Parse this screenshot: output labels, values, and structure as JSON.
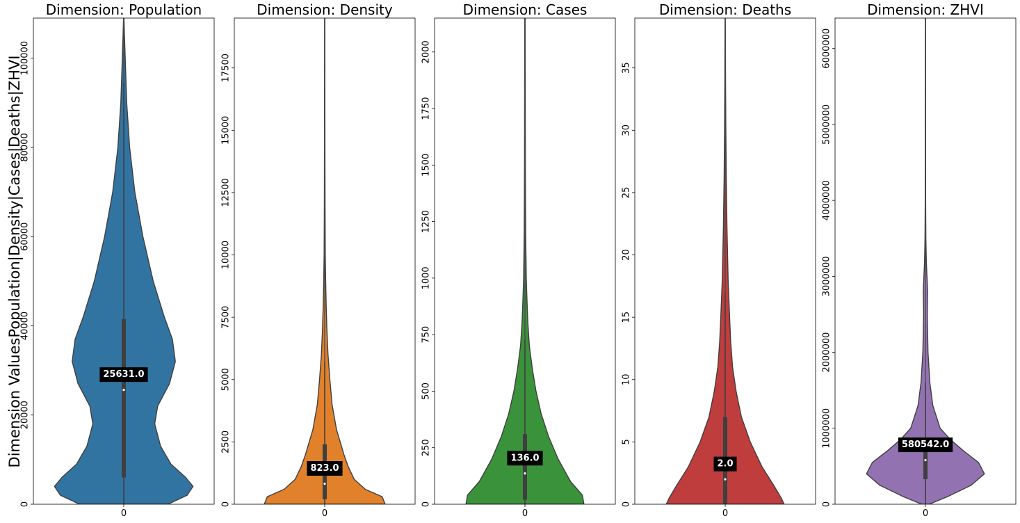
{
  "ylabel": "Dimension ValuesPopulation|Density|Cases|Deaths|ZHVI",
  "chart_data": [
    {
      "type": "violin",
      "title": "Dimension: Population",
      "color": "#3274a1",
      "ylim": [
        0,
        109000
      ],
      "yticks": [
        0,
        20000,
        40000,
        60000,
        80000,
        100000
      ],
      "ytick_labels": [
        "0",
        "20000",
        "40000",
        "60000",
        "80000",
        "100000"
      ],
      "xtick_label": "0",
      "median": 25631.0,
      "median_label": "25631.0",
      "q1": 6000,
      "q3": 41500,
      "whisker_low": 0,
      "whisker_high": 94500,
      "max": 109000,
      "profile": [
        [
          0,
          0.6
        ],
        [
          2000,
          0.86
        ],
        [
          4000,
          0.94
        ],
        [
          6000,
          0.84
        ],
        [
          9000,
          0.64
        ],
        [
          13000,
          0.5
        ],
        [
          18000,
          0.42
        ],
        [
          22000,
          0.46
        ],
        [
          27000,
          0.62
        ],
        [
          32000,
          0.7
        ],
        [
          37000,
          0.66
        ],
        [
          42000,
          0.55
        ],
        [
          50000,
          0.4
        ],
        [
          60000,
          0.26
        ],
        [
          70000,
          0.15
        ],
        [
          80000,
          0.08
        ],
        [
          90000,
          0.04
        ],
        [
          100000,
          0.02
        ],
        [
          105000,
          0.01
        ],
        [
          109000,
          0.003
        ]
      ]
    },
    {
      "type": "violin",
      "title": "Dimension: Density",
      "color": "#e1812c",
      "ylim": [
        0,
        19500
      ],
      "yticks": [
        0,
        2500,
        5000,
        7500,
        10000,
        12500,
        15000,
        17500
      ],
      "ytick_labels": [
        "0",
        "2500",
        "5000",
        "7500",
        "10000",
        "12500",
        "15000",
        "17500"
      ],
      "xtick_label": "0",
      "median": 823.0,
      "median_label": "823.0",
      "q1": 200,
      "q3": 2400,
      "whisker_low": 0,
      "whisker_high": 5700,
      "max": 19500,
      "profile": [
        [
          0,
          0.82
        ],
        [
          300,
          0.78
        ],
        [
          600,
          0.55
        ],
        [
          1000,
          0.4
        ],
        [
          1500,
          0.32
        ],
        [
          2000,
          0.26
        ],
        [
          2500,
          0.21
        ],
        [
          3000,
          0.16
        ],
        [
          4000,
          0.1
        ],
        [
          5000,
          0.07
        ],
        [
          6000,
          0.045
        ],
        [
          7000,
          0.03
        ],
        [
          8000,
          0.02
        ],
        [
          9000,
          0.013
        ],
        [
          10000,
          0.008
        ],
        [
          12000,
          0.005
        ],
        [
          15000,
          0.003
        ],
        [
          19500,
          0.002
        ]
      ]
    },
    {
      "type": "violin",
      "title": "Dimension: Cases",
      "color": "#3a923a",
      "ylim": [
        0,
        2150
      ],
      "yticks": [
        0,
        250,
        500,
        750,
        1000,
        1250,
        1500,
        1750,
        2000
      ],
      "ytick_labels": [
        "0",
        "250",
        "500",
        "750",
        "1000",
        "1250",
        "1500",
        "1750",
        "2000"
      ],
      "xtick_label": "0",
      "median": 136.0,
      "median_label": "136.0",
      "q1": 20,
      "q3": 310,
      "whisker_low": 0,
      "whisker_high": 730,
      "max": 2150,
      "profile": [
        [
          0,
          0.8
        ],
        [
          40,
          0.78
        ],
        [
          100,
          0.62
        ],
        [
          200,
          0.45
        ],
        [
          300,
          0.32
        ],
        [
          400,
          0.22
        ],
        [
          500,
          0.15
        ],
        [
          600,
          0.1
        ],
        [
          700,
          0.06
        ],
        [
          800,
          0.04
        ],
        [
          900,
          0.028
        ],
        [
          1000,
          0.018
        ],
        [
          1200,
          0.01
        ],
        [
          1500,
          0.006
        ],
        [
          2150,
          0.003
        ]
      ]
    },
    {
      "type": "violin",
      "title": "Dimension: Deaths",
      "color": "#c03d3e",
      "ylim": [
        0,
        39
      ],
      "yticks": [
        0,
        5,
        10,
        15,
        20,
        25,
        30,
        35
      ],
      "ytick_labels": [
        "0",
        "5",
        "10",
        "15",
        "20",
        "25",
        "30",
        "35"
      ],
      "xtick_label": "0",
      "median": 2.0,
      "median_label": "2.0",
      "q1": 0,
      "q3": 7,
      "whisker_low": 0,
      "whisker_high": 17,
      "max": 39,
      "profile": [
        [
          0,
          0.8
        ],
        [
          0.5,
          0.76
        ],
        [
          1.5,
          0.66
        ],
        [
          3,
          0.5
        ],
        [
          5,
          0.34
        ],
        [
          7,
          0.22
        ],
        [
          9,
          0.15
        ],
        [
          11,
          0.1
        ],
        [
          13,
          0.075
        ],
        [
          15,
          0.06
        ],
        [
          18,
          0.04
        ],
        [
          22,
          0.025
        ],
        [
          26,
          0.015
        ],
        [
          30,
          0.009
        ],
        [
          34,
          0.005
        ],
        [
          39,
          0.002
        ]
      ]
    },
    {
      "type": "violin",
      "title": "Dimension: ZHVI",
      "color": "#9372b2",
      "ylim": [
        0,
        6400000
      ],
      "yticks": [
        0,
        1000000,
        2000000,
        3000000,
        4000000,
        5000000,
        6000000
      ],
      "ytick_labels": [
        "0",
        "1000000",
        "2000000",
        "3000000",
        "4000000",
        "5000000",
        "6000000"
      ],
      "xtick_label": "0",
      "median": 580542.0,
      "median_label": "580542.0",
      "q1": 330000,
      "q3": 850000,
      "whisker_low": 0,
      "whisker_high": 1600000,
      "max": 6400000,
      "profile": [
        [
          0,
          0.05
        ],
        [
          100000,
          0.3
        ],
        [
          250000,
          0.62
        ],
        [
          400000,
          0.8
        ],
        [
          550000,
          0.72
        ],
        [
          700000,
          0.52
        ],
        [
          850000,
          0.34
        ],
        [
          1000000,
          0.2
        ],
        [
          1300000,
          0.1
        ],
        [
          1600000,
          0.06
        ],
        [
          2000000,
          0.035
        ],
        [
          2500000,
          0.025
        ],
        [
          2800000,
          0.03
        ],
        [
          3200000,
          0.012
        ],
        [
          3500000,
          0.006
        ],
        [
          4000000,
          0.003
        ],
        [
          6400000,
          0.002
        ]
      ]
    }
  ]
}
